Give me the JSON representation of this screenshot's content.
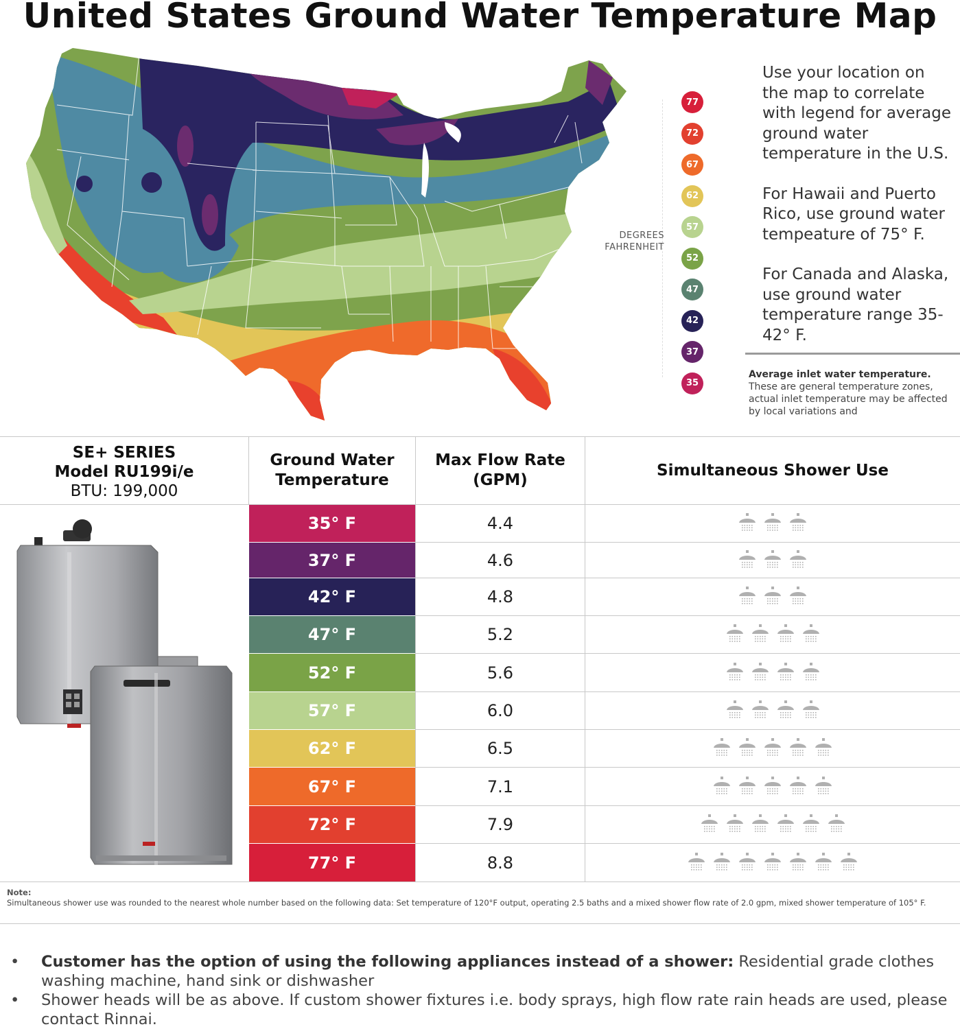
{
  "title": "United States Ground Water Temperature Map",
  "map_colors": {
    "77": "#d42a3a",
    "72": "#e8412d",
    "67": "#ef6a2b",
    "62": "#e2c558",
    "57": "#b8d38f",
    "52": "#7ea34c",
    "47": "#4f8aa3",
    "42": "#2a2460",
    "37": "#6b2c6f",
    "35": "#c0215a"
  },
  "legend": {
    "caption_line1": "DEGREES",
    "caption_line2": "FAHRENHEIT",
    "items": [
      {
        "label": "77",
        "color": "#d71f3a"
      },
      {
        "label": "72",
        "color": "#e2402f"
      },
      {
        "label": "67",
        "color": "#ee6a2a"
      },
      {
        "label": "62",
        "color": "#e2c558"
      },
      {
        "label": "57",
        "color": "#b8d38f"
      },
      {
        "label": "52",
        "color": "#7aa347"
      },
      {
        "label": "47",
        "color": "#5a8270"
      },
      {
        "label": "42",
        "color": "#272257"
      },
      {
        "label": "37",
        "color": "#65256a"
      },
      {
        "label": "35",
        "color": "#c0215a"
      }
    ]
  },
  "info": {
    "p1": "Use your location on the map to correlate with legend for average ground water temperature in the U.S.",
    "p2": "For Hawaii and Puerto Rico, use ground water tempeature of 75° F.",
    "p3": "For Canada and Alaska, use ground water temperature range 35-42° F.",
    "avg_title": "Average inlet water temperature.",
    "avg_body": "These are general temperature zones, actual inlet temperature may be affected by local variations and"
  },
  "table": {
    "model_line1": "SE+ SERIES",
    "model_line2": "Model RU199i/e",
    "model_line3": "BTU: 199,000",
    "col_temp": "Ground Water Temperature",
    "col_flow": "Max Flow Rate (GPM)",
    "col_shower": "Simultaneous Shower Use",
    "rows": [
      {
        "temp": "35° F",
        "flow": "4.4",
        "showers": 3,
        "color": "#c0215a"
      },
      {
        "temp": "37° F",
        "flow": "4.6",
        "showers": 3,
        "color": "#65256a"
      },
      {
        "temp": "42° F",
        "flow": "4.8",
        "showers": 3,
        "color": "#272257"
      },
      {
        "temp": "47° F",
        "flow": "5.2",
        "showers": 4,
        "color": "#5a8270"
      },
      {
        "temp": "52° F",
        "flow": "5.6",
        "showers": 4,
        "color": "#7aa347"
      },
      {
        "temp": "57° F",
        "flow": "6.0",
        "showers": 4,
        "color": "#b8d38f"
      },
      {
        "temp": "62° F",
        "flow": "6.5",
        "showers": 5,
        "color": "#e2c558"
      },
      {
        "temp": "67° F",
        "flow": "7.1",
        "showers": 5,
        "color": "#ee6a2a"
      },
      {
        "temp": "72° F",
        "flow": "7.9",
        "showers": 6,
        "color": "#e2402f"
      },
      {
        "temp": "77° F",
        "flow": "8.8",
        "showers": 7,
        "color": "#d71f3a"
      }
    ]
  },
  "note": {
    "label": "Note:",
    "text": "Simultaneous shower use was rounded to the nearest whole number based on the following data: Set temperature of 120°F output, operating 2.5 baths and a mixed shower flow rate of 2.0 gpm, mixed shower temperature of 105° F."
  },
  "bullets": [
    {
      "bold": "Customer has the option of using the following appliances instead of a shower:",
      "text": " Residential grade clothes washing machine, hand sink or dishwasher"
    },
    {
      "bold": "",
      "text": "Shower heads will be as above. If custom shower fixtures  i.e. body sprays, high flow rate rain heads are used, please contact Rinnai."
    }
  ]
}
